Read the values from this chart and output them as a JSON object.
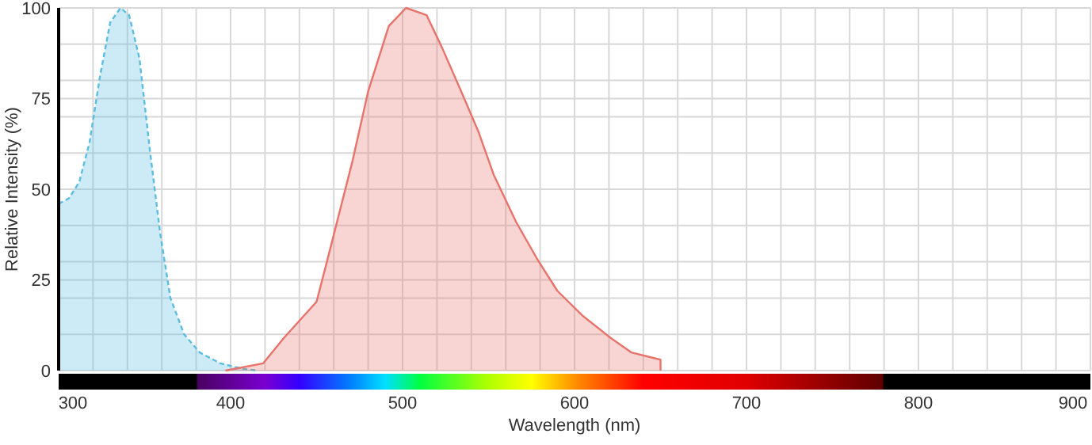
{
  "chart_data": {
    "type": "area",
    "xlabel": "Wavelength (nm)",
    "ylabel": "Relative Intensity (%)",
    "xlim": [
      300,
      900
    ],
    "ylim": [
      0,
      100
    ],
    "xticks": [
      300,
      {
        "value": 320,
        "label": null
      },
      {
        "value": 340,
        "label": null
      },
      {
        "value": 360,
        "label": null
      },
      {
        "value": 380,
        "label": null
      },
      400,
      {
        "value": 420,
        "label": null
      },
      {
        "value": 440,
        "label": null
      },
      {
        "value": 460,
        "label": null
      },
      {
        "value": 480,
        "label": null
      },
      500,
      {
        "value": 520,
        "label": null
      },
      {
        "value": 540,
        "label": null
      },
      {
        "value": 560,
        "label": null
      },
      {
        "value": 580,
        "label": null
      },
      600,
      {
        "value": 620,
        "label": null
      },
      {
        "value": 640,
        "label": null
      },
      {
        "value": 660,
        "label": null
      },
      {
        "value": 680,
        "label": null
      },
      700,
      {
        "value": 720,
        "label": null
      },
      {
        "value": 740,
        "label": null
      },
      {
        "value": 760,
        "label": null
      },
      {
        "value": 780,
        "label": null
      },
      800,
      {
        "value": 820,
        "label": null
      },
      {
        "value": 840,
        "label": null
      },
      {
        "value": 860,
        "label": null
      },
      {
        "value": 880,
        "label": null
      },
      900
    ],
    "yticks": [
      0,
      {
        "value": 10,
        "label": null
      },
      {
        "value": 20,
        "label": null
      },
      25,
      {
        "value": 30,
        "label": null
      },
      {
        "value": 40,
        "label": null
      },
      50,
      {
        "value": 60,
        "label": null
      },
      {
        "value": 70,
        "label": null
      },
      75,
      {
        "value": 80,
        "label": null
      },
      {
        "value": 90,
        "label": null
      },
      100
    ],
    "grid": true,
    "series": [
      {
        "color": "#5bbde0",
        "line_style": "dashed",
        "x": [
          300,
          306,
          312,
          318,
          324,
          330,
          336,
          341,
          347,
          353,
          359,
          365,
          373,
          382,
          394,
          407,
          416
        ],
        "values": [
          46,
          47.5,
          52,
          63,
          81,
          96,
          100,
          98,
          86,
          61,
          38,
          20,
          10,
          5,
          2,
          0.5,
          0
        ]
      },
      {
        "color": "#e8736b",
        "line_style": "solid",
        "x": [
          397,
          419,
          431,
          450,
          456,
          471,
          480,
          492,
          502,
          514,
          523,
          535,
          544,
          553,
          566,
          578,
          590,
          605,
          621,
          633,
          650,
          650
        ],
        "values": [
          0,
          2,
          9,
          19,
          30,
          58,
          77,
          95,
          100,
          98,
          89,
          76,
          66,
          54,
          41,
          31,
          22,
          15,
          9,
          5,
          3,
          0
        ]
      }
    ]
  }
}
